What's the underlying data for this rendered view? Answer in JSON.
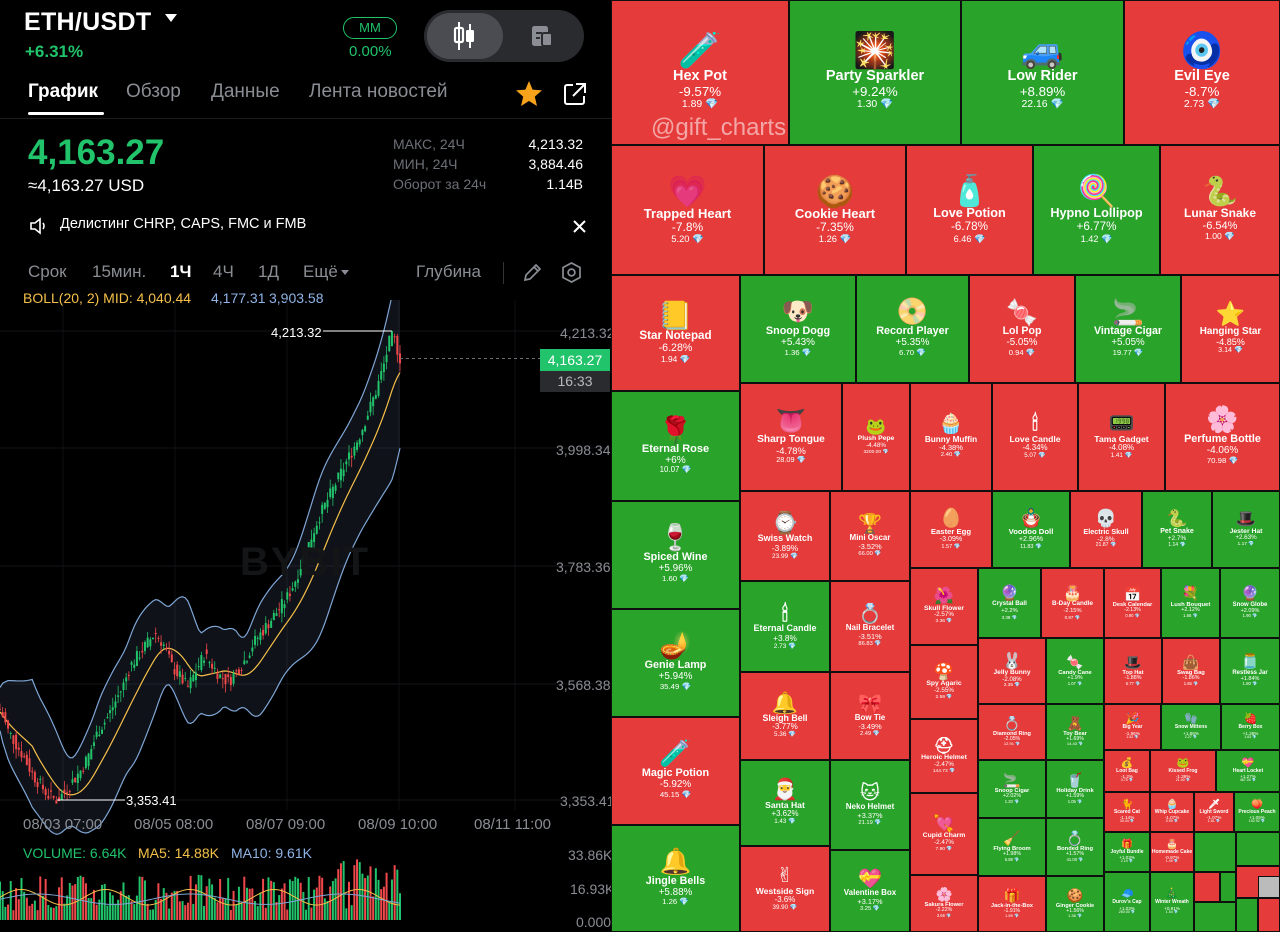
{
  "header": {
    "symbol": "ETH/USDT",
    "change": "+6.31%",
    "mm_label": "MM",
    "mm_value": "0.00%"
  },
  "tabs": [
    "График",
    "Обзор",
    "Данные",
    "Лента новостей"
  ],
  "ticker": {
    "price": "4,163.27",
    "price_usd": "≈4,163.27 USD",
    "stats": [
      {
        "label": "МАКС, 24Ч",
        "value": "4,213.32"
      },
      {
        "label": "МИН, 24Ч",
        "value": "3,884.46"
      },
      {
        "label": "Оборот за 24ч",
        "value": "1.14B"
      }
    ]
  },
  "notice": "Делистинг CHRP, CAPS, FMC и FMB",
  "timeframes": {
    "items": [
      "Срок",
      "15мин.",
      "1Ч",
      "4Ч",
      "1Д",
      "Ещё"
    ],
    "active": "1Ч",
    "depth": "Глубина"
  },
  "boll": {
    "label": "BOLL(20, 2) MID: 4,040.44",
    "upper": "4,177.31",
    "lower": "3,903.58"
  },
  "chart": {
    "watermark": "BYBIT",
    "y_ticks": [
      "4,213.32",
      "3,998.34",
      "3,783.36",
      "3,568.38",
      "3,353.41"
    ],
    "x_ticks": [
      "08/03 07:00",
      "08/05 08:00",
      "08/07 09:00",
      "08/09 10:00",
      "08/11 11:00"
    ],
    "high_label": "4,213.32",
    "low_label": "3,353.41",
    "last_price": "4,163.27",
    "countdown": "16:33",
    "volume": {
      "label": "VOLUME: 6.64K",
      "ma5": "MA5: 14.88K",
      "ma10": "MA10: 9.61K",
      "ticks": [
        "33.86K",
        "16.93K",
        "0.000"
      ]
    },
    "colors": {
      "up": "#21c36b",
      "down": "#f0484b",
      "mid": "#f5c04a",
      "band": "#7fa6d6"
    }
  },
  "chart_data": {
    "type": "line",
    "series": [
      {
        "values": [
          3520,
          3480,
          3455,
          3430,
          3400,
          3380,
          3360,
          3353,
          3370,
          3390,
          3410,
          3440,
          3480,
          3500,
          3530,
          3560,
          3600,
          3620,
          3640,
          3660,
          3640,
          3600,
          3580,
          3560,
          3590,
          3620,
          3600,
          3580,
          3570,
          3590,
          3610,
          3640,
          3660,
          3680,
          3700,
          3720,
          3750,
          3790,
          3830,
          3870,
          3900,
          3930,
          3960,
          3990,
          4020,
          4060,
          4100,
          4150,
          4213,
          4163
        ]
      }
    ],
    "ylim": [
      3353.41,
      4213.32
    ]
  },
  "treemap": {
    "watermark": "@gift_charts",
    "colors": {
      "up": "#2aa32a",
      "down": "#e63b3b"
    },
    "tiles": [
      {
        "name": "Hex Pot",
        "change": "-9.57%",
        "floor": "1.89",
        "emoji": "🧪"
      },
      {
        "name": "Party Sparkler",
        "change": "+9.24%",
        "floor": "1.30",
        "emoji": "🎇"
      },
      {
        "name": "Low Rider",
        "change": "+8.89%",
        "floor": "22.16",
        "emoji": "🚙"
      },
      {
        "name": "Evil Eye",
        "change": "-8.7%",
        "floor": "2.73",
        "emoji": "🧿"
      },
      {
        "name": "Trapped Heart",
        "change": "-7.8%",
        "floor": "5.20",
        "emoji": "💗"
      },
      {
        "name": "Cookie Heart",
        "change": "-7.35%",
        "floor": "1.26",
        "emoji": "🍪"
      },
      {
        "name": "Love Potion",
        "change": "-6.78%",
        "floor": "6.46",
        "emoji": "🧴"
      },
      {
        "name": "Hypno Lollipop",
        "change": "+6.77%",
        "floor": "1.42",
        "emoji": "🍭"
      },
      {
        "name": "Lunar Snake",
        "change": "-6.54%",
        "floor": "1.00",
        "emoji": "🐍"
      },
      {
        "name": "Star Notepad",
        "change": "-6.28%",
        "floor": "1.94",
        "emoji": "📒"
      },
      {
        "name": "Snoop Dogg",
        "change": "+5.43%",
        "floor": "1.36",
        "emoji": "🐶"
      },
      {
        "name": "Record Player",
        "change": "+5.35%",
        "floor": "6.70",
        "emoji": "📀"
      },
      {
        "name": "Lol Pop",
        "change": "-5.05%",
        "floor": "0.94",
        "emoji": "🍬"
      },
      {
        "name": "Vintage Cigar",
        "change": "+5.05%",
        "floor": "19.77",
        "emoji": "🚬"
      },
      {
        "name": "Hanging Star",
        "change": "-4.85%",
        "floor": "3.14",
        "emoji": "⭐"
      },
      {
        "name": "Eternal Rose",
        "change": "+6%",
        "floor": "10.07",
        "emoji": "🌹"
      },
      {
        "name": "Sharp Tongue",
        "change": "-4.78%",
        "floor": "28.09",
        "emoji": "👅"
      },
      {
        "name": "Plush Pepe",
        "change": "-4.48%",
        "floor": "3200.00",
        "emoji": "🐸"
      },
      {
        "name": "Bunny Muffin",
        "change": "-4.38%",
        "floor": "2.40",
        "emoji": "🧁"
      },
      {
        "name": "Love Candle",
        "change": "-4.34%",
        "floor": "5.07",
        "emoji": "🕯"
      },
      {
        "name": "Tama Gadget",
        "change": "-4.08%",
        "floor": "1.41",
        "emoji": "📟"
      },
      {
        "name": "Perfume Bottle",
        "change": "-4.06%",
        "floor": "70.98",
        "emoji": "🌸"
      },
      {
        "name": "Spiced Wine",
        "change": "+5.96%",
        "floor": "1.60",
        "emoji": "🍷"
      },
      {
        "name": "Swiss Watch",
        "change": "-3.89%",
        "floor": "23.99",
        "emoji": "⌚"
      },
      {
        "name": "Mini Oscar",
        "change": "-3.52%",
        "floor": "66.00",
        "emoji": "🏆"
      },
      {
        "name": "Easter Egg",
        "change": "-3.09%",
        "floor": "1.57",
        "emoji": "🥚"
      },
      {
        "name": "Voodoo Doll",
        "change": "+2.96%",
        "floor": "11.83",
        "emoji": "🪆"
      },
      {
        "name": "Electric Skull",
        "change": "-2.8%",
        "floor": "21.87",
        "emoji": "💀"
      },
      {
        "name": "Pet Snake",
        "change": "+2.7%",
        "floor": "1.14",
        "emoji": "🐍"
      },
      {
        "name": "Jester Hat",
        "change": "+2.63%",
        "floor": "1.17",
        "emoji": "🎩"
      },
      {
        "name": "Genie Lamp",
        "change": "+5.94%",
        "floor": "35.49",
        "emoji": "🪔"
      },
      {
        "name": "Eternal Candle",
        "change": "+3.8%",
        "floor": "2.73",
        "emoji": "🕯"
      },
      {
        "name": "Nail Bracelet",
        "change": "-3.51%",
        "floor": "86.83",
        "emoji": "💍"
      },
      {
        "name": "Skull Flower",
        "change": "-2.57%",
        "floor": "3.36",
        "emoji": "🌺"
      },
      {
        "name": "Crystal Ball",
        "change": "+2.2%",
        "floor": "3.38",
        "emoji": "🔮"
      },
      {
        "name": "B-Day Candle",
        "change": "-2.15%",
        "floor": "0.97",
        "emoji": "🎂"
      },
      {
        "name": "Desk Calendar",
        "change": "-2.13%",
        "floor": "0.90",
        "emoji": "📅"
      },
      {
        "name": "Lush Bouquet",
        "change": "+2.12%",
        "floor": "1.66",
        "emoji": "💐"
      },
      {
        "name": "Snow Globe",
        "change": "+2.09%",
        "floor": "1.90",
        "emoji": "🔮"
      },
      {
        "name": "Spy Agaric",
        "change": "-2.55%",
        "floor": "2.59",
        "emoji": "🍄"
      },
      {
        "name": "Jelly Bunny",
        "change": "-2.08%",
        "floor": "2.35",
        "emoji": "🐰"
      },
      {
        "name": "Candy Cane",
        "change": "+1.9%",
        "floor": "1.07",
        "emoji": "🍬"
      },
      {
        "name": "Top Hat",
        "change": "-1.88%",
        "floor": "6.77",
        "emoji": "🎩"
      },
      {
        "name": "Swag Bag",
        "change": "-1.86%",
        "floor": "1.65",
        "emoji": "👜"
      },
      {
        "name": "Restless Jar",
        "change": "+1.84%",
        "floor": "1.80",
        "emoji": "🫙"
      },
      {
        "name": "Magic Potion",
        "change": "-5.92%",
        "floor": "45.15",
        "emoji": "🧪"
      },
      {
        "name": "Sleigh Bell",
        "change": "-3.77%",
        "floor": "5.36",
        "emoji": "🔔"
      },
      {
        "name": "Bow Tie",
        "change": "-3.49%",
        "floor": "2.49",
        "emoji": "🎀"
      },
      {
        "name": "Heroic Helmet",
        "change": "-2.47%",
        "floor": "144.73",
        "emoji": "⛑"
      },
      {
        "name": "Diamond Ring",
        "change": "-2.05%",
        "floor": "12.91",
        "emoji": "💍"
      },
      {
        "name": "Toy Bear",
        "change": "+1.69%",
        "floor": "14.43",
        "emoji": "🧸"
      },
      {
        "name": "Big Year",
        "change": "-1.96%",
        "floor": "1.52",
        "emoji": "🎉"
      },
      {
        "name": "Snow Mittens",
        "change": "+1.86%",
        "floor": "2.27",
        "emoji": "🧤"
      },
      {
        "name": "Berry Box",
        "change": "+1.36%",
        "floor": "1.63",
        "emoji": "🍓"
      },
      {
        "name": "Loot Bag",
        "change": "-1.2%",
        "floor": "3.75",
        "emoji": "💰"
      },
      {
        "name": "Kissed Frog",
        "change": "-1.39%",
        "floor": "21.00",
        "emoji": "🐸"
      },
      {
        "name": "Heart Locket",
        "change": "+1.27%",
        "floor": "487.00",
        "emoji": "💝"
      },
      {
        "name": "Santa Hat",
        "change": "+3.62%",
        "floor": "1.43",
        "emoji": "🎅"
      },
      {
        "name": "Neko Helmet",
        "change": "+3.37%",
        "floor": "21.19",
        "emoji": "🐱"
      },
      {
        "name": "Snoop Cigar",
        "change": "+2.02%",
        "floor": "1.20",
        "emoji": "🚬"
      },
      {
        "name": "Holiday Drink",
        "change": "+1.59%",
        "floor": "1.05",
        "emoji": "🥤"
      },
      {
        "name": "Scared Cat",
        "change": "-1.14%",
        "floor": "30.44",
        "emoji": "🐈"
      },
      {
        "name": "Whip Cupcake",
        "change": "-1.07%",
        "floor": "0.99",
        "emoji": "🧁"
      },
      {
        "name": "Light Sword",
        "change": "-1.07%",
        "floor": "1.81",
        "emoji": "🗡"
      },
      {
        "name": "Precious Peach",
        "change": "+1.05%",
        "floor": "192.92",
        "emoji": "🍑"
      },
      {
        "name": "Cupid Charm",
        "change": "-2.47%",
        "floor": "7.90",
        "emoji": "💘"
      },
      {
        "name": "Flying Broom",
        "change": "+1.98%",
        "floor": "6.88",
        "emoji": "🧹"
      },
      {
        "name": "Bonded Ring",
        "change": "+1.57%",
        "floor": "41.00",
        "emoji": "💍"
      },
      {
        "name": "Joyful Bundle",
        "change": "+1.03%",
        "floor": "2.10",
        "emoji": "🎁"
      },
      {
        "name": "Homemade Cake",
        "change": "-0.97%",
        "floor": "1.49",
        "emoji": "🎂"
      },
      {
        "name": "Jingle Bells",
        "change": "+5.88%",
        "floor": "1.26",
        "emoji": "🔔"
      },
      {
        "name": "Westside Sign",
        "change": "-3.6%",
        "floor": "39.90",
        "emoji": "✌"
      },
      {
        "name": "Valentine Box",
        "change": "+3.17%",
        "floor": "3.25",
        "emoji": "💝"
      },
      {
        "name": "Sakura Flower",
        "change": "-2.22%",
        "floor": "3.66",
        "emoji": "🌸"
      },
      {
        "name": "Jack-in-the-Box",
        "change": "-1.91%",
        "floor": "1.89",
        "emoji": "🎁"
      },
      {
        "name": "Ginger Cookie",
        "change": "+1.56%",
        "floor": "1.36",
        "emoji": "🍪"
      },
      {
        "name": "Durov's Cap",
        "change": "+1.03%",
        "floor": "260.00",
        "emoji": "🧢"
      },
      {
        "name": "Winter Wreath",
        "change": "+0.91%",
        "floor": "1.54",
        "emoji": "🎄"
      }
    ]
  }
}
